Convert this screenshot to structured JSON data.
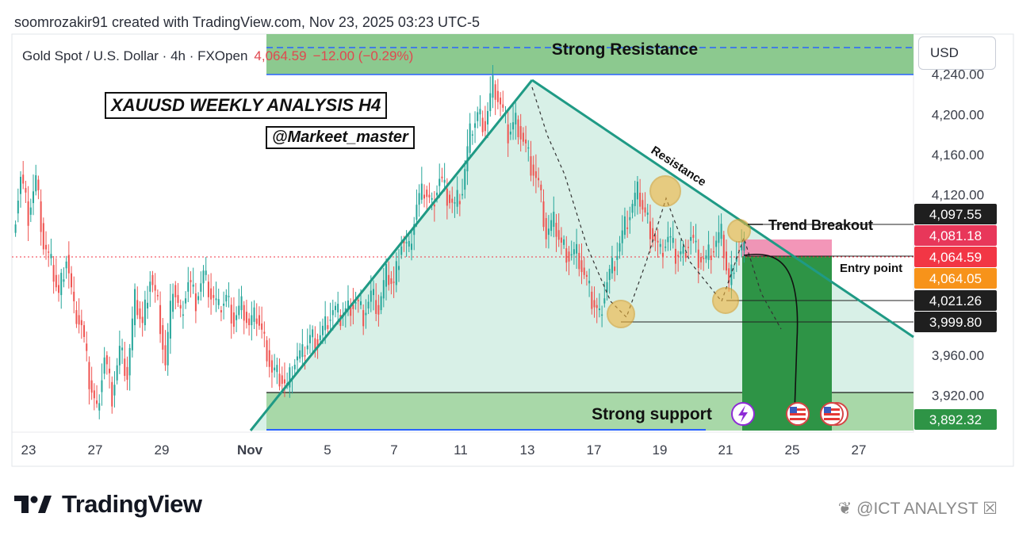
{
  "header": {
    "credit": "soomrozakir91 created with TradingView.com, Nov 23, 2025 03:23 UTC-5",
    "symbol": "Gold Spot / U.S. Dollar · 4h · FXOpen",
    "last_price": "4,064.59",
    "change": "−12.00 (−0.29%)",
    "currency": "USD"
  },
  "annotations": {
    "analysis_title": "XAUUSD WEEKLY ANALYSIS  H4",
    "handle": "@Markeet_master",
    "strong_resistance": "Strong Resistance",
    "strong_support": "Strong support",
    "resistance": "Resistance",
    "trend_breakout": "Trend Breakout",
    "entry_point": "Entry point"
  },
  "footer": {
    "logo_text": "TradingView",
    "watermark": "❦ @ICT ANALYST ☒"
  },
  "colors": {
    "up": "#26a69a",
    "down": "#ef5350",
    "trendline": "#1f9a85",
    "triangle_fill": "#d6efe6",
    "zone_fill": "#8cc98f",
    "target_box": "#2e9446",
    "stop_box": "#f28bb0",
    "circle": "#f0b43c"
  },
  "chart_data": {
    "type": "candlestick",
    "title": "Gold Spot / U.S. Dollar · 4h · FXOpen",
    "ylim": [
      3885,
      4280
    ],
    "yticks": [
      "4,240.00",
      "4,200.00",
      "4,160.00",
      "4,120.00",
      "3,960.00",
      "3,920.00"
    ],
    "ytick_values": [
      4240,
      4200,
      4160,
      4120,
      3960,
      3920
    ],
    "xticks": [
      "23",
      "27",
      "29",
      "Nov",
      "5",
      "7",
      "11",
      "13",
      "17",
      "19",
      "21",
      "25",
      "27"
    ],
    "price_labels": [
      {
        "text": "4,097.55",
        "value": 4097.55,
        "color": "#1f1f1f"
      },
      {
        "text": "4,081.18",
        "value": 4081.18,
        "color": "#e8375a"
      },
      {
        "text": "4,064.59",
        "value": 4064.59,
        "color": "#f23645"
      },
      {
        "text": "4,064.05",
        "value": 4064.05,
        "color": "#f7931a"
      },
      {
        "text": "4,021.26",
        "value": 4021.26,
        "color": "#1f1f1f"
      },
      {
        "text": "3,999.80",
        "value": 3999.8,
        "color": "#1f1f1f"
      },
      {
        "text": "3,892.32",
        "value": 3892.32,
        "color": "#2e9446"
      }
    ],
    "current_price": 4064.59,
    "price_path": [
      4082,
      4140,
      4100,
      4135,
      4070,
      4050,
      4020,
      4060,
      4005,
      3990,
      3935,
      3905,
      3960,
      3920,
      3965,
      3940,
      4015,
      3990,
      4040,
      4010,
      3950,
      4030,
      4000,
      4035,
      4015,
      4040,
      4020,
      4005,
      4018,
      3995,
      4010,
      3990,
      4000,
      3975,
      3945,
      3940,
      3928,
      3955,
      3960,
      3978,
      3975,
      3990,
      4005,
      3998,
      4008,
      4015,
      4000,
      4020,
      4005,
      4040,
      4030,
      4075,
      4065,
      4110,
      4125,
      4110,
      4138,
      4120,
      4108,
      4125,
      4180,
      4200,
      4190,
      4230,
      4210,
      4180,
      4195,
      4175,
      4150,
      4130,
      4080,
      4092,
      4070,
      4060,
      4062,
      4040,
      4015,
      4000,
      4035,
      4055,
      4080,
      4102,
      4122,
      4100,
      4080,
      4062,
      4078,
      4060,
      4062,
      4080,
      4058,
      4055,
      4068,
      4080,
      4030,
      4065,
      4064
    ]
  }
}
